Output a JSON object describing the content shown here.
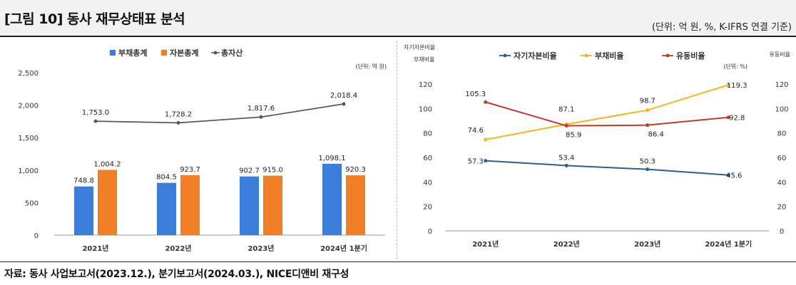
{
  "header": {
    "title": "[그림 10] 동사 재무상태표 분석",
    "unit_note": "(단위: 억 원, %, K-IFRS 연결 기준)"
  },
  "footer": {
    "source": "자료: 동사 사업보고서(2023.12.), 분기보고서(2024.03.), NICE디앤비 재구성"
  },
  "chart_data": [
    {
      "type": "bar",
      "unit_label": "(단위: 억 원)",
      "categories": [
        "2021년",
        "2022년",
        "2023년",
        "2024년 1분기"
      ],
      "ylim": [
        0,
        2500
      ],
      "yticks": [
        0,
        500,
        1000,
        1500,
        2000,
        2500
      ],
      "ytick_labels": [
        "0",
        "500",
        "1,000",
        "1,500",
        "2,000",
        "2,500"
      ],
      "legend_position": "top-center",
      "series": [
        {
          "name": "부채총계",
          "kind": "bar",
          "color": "#3b7dd8",
          "values": [
            748.8,
            804.5,
            902.7,
            1098.1
          ],
          "labels": [
            "748.8",
            "804.5",
            "902.7",
            "1,098.1"
          ]
        },
        {
          "name": "자본총계",
          "kind": "bar",
          "color": "#f07e26",
          "values": [
            1004.2,
            923.7,
            915.0,
            920.3
          ],
          "labels": [
            "1,004.2",
            "923.7",
            "915.0",
            "920.3"
          ]
        },
        {
          "name": "총자산",
          "kind": "line",
          "color": "#595959",
          "values": [
            1753.0,
            1728.2,
            1817.6,
            2018.4
          ],
          "labels": [
            "1,753.0",
            "1,728.2",
            "1,817.6",
            "2,018.4"
          ]
        }
      ]
    },
    {
      "type": "line",
      "left_axis_label_top": "자기자본비율",
      "left_axis_label_bottom": "부채비율",
      "right_axis_label": "유동비율",
      "unit_label": "(단위: %)",
      "categories": [
        "2021년",
        "2022년",
        "2023년",
        "2024년 1분기"
      ],
      "ylim": [
        0,
        120
      ],
      "yticks": [
        0,
        20,
        40,
        60,
        80,
        100,
        120
      ],
      "ytick_labels": [
        "0",
        "20",
        "40",
        "60",
        "80",
        "100",
        "120"
      ],
      "legend_position": "top-center",
      "series": [
        {
          "name": "자기자본비율",
          "color": "#2e5f8a",
          "values": [
            57.3,
            53.4,
            50.3,
            45.6
          ],
          "labels": [
            "57.3",
            "53.4",
            "50.3",
            "45.6"
          ]
        },
        {
          "name": "부채비율",
          "color": "#f5b324",
          "values": [
            74.6,
            87.1,
            98.7,
            119.3
          ],
          "labels": [
            "74.6",
            "87.1",
            "98.7",
            "119.3"
          ]
        },
        {
          "name": "유동비율",
          "color": "#c0392b",
          "values": [
            105.3,
            85.9,
            86.4,
            92.8
          ],
          "labels": [
            "105.3",
            "85.9",
            "86.4",
            "92.8"
          ]
        }
      ]
    }
  ]
}
